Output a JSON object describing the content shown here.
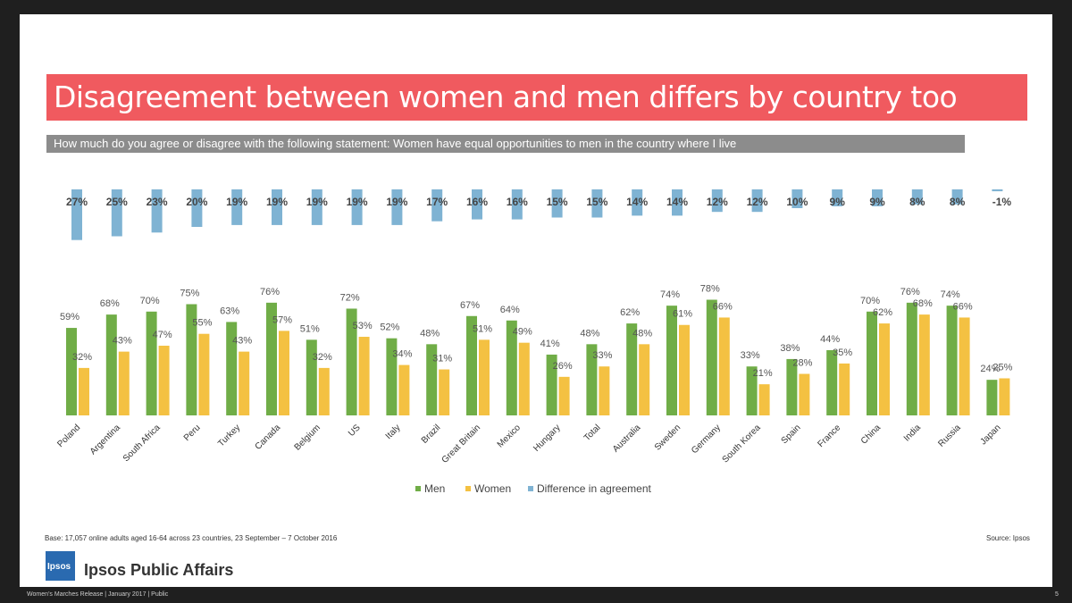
{
  "title": "Disagreement between women and men differs by country too",
  "subtitle": "How much do you agree or disagree with the following statement: Women have equal opportunities to men in the country where I live",
  "footnote_base": "Base: 17,057 online adults aged 16-64 across 23 countries,  23 September – 7 October 2016",
  "footnote_source": "Source: Ipsos",
  "brand": {
    "logo_text": "Ipsos",
    "name": "Ipsos Public Affairs"
  },
  "footer": {
    "release": "Women’s Marches Release  |  January 2017  |  Public",
    "page": "5"
  },
  "colors": {
    "title_bg": "#f05a5f",
    "subtitle_bg": "#8c8c8c",
    "men": "#70ad47",
    "women": "#f4c142",
    "difference": "#7fb3d3"
  },
  "chart_data": {
    "type": "bar",
    "categories": [
      "Poland",
      "Argentina",
      "South Africa",
      "Peru",
      "Turkey",
      "Canada",
      "Belgium",
      "US",
      "Italy",
      "Brazil",
      "Great Britain",
      "Mexico",
      "Hungary",
      "Total",
      "Australia",
      "Sweden",
      "Germany",
      "South Korea",
      "Spain",
      "France",
      "China",
      "India",
      "Russia",
      "Japan"
    ],
    "series": [
      {
        "name": "Men",
        "values": [
          59,
          68,
          70,
          75,
          63,
          76,
          51,
          72,
          52,
          48,
          67,
          64,
          41,
          48,
          62,
          74,
          78,
          33,
          38,
          44,
          70,
          76,
          74,
          24
        ]
      },
      {
        "name": "Women",
        "values": [
          32,
          43,
          47,
          55,
          43,
          57,
          32,
          53,
          34,
          31,
          51,
          49,
          26,
          33,
          48,
          61,
          66,
          21,
          28,
          35,
          62,
          68,
          66,
          25
        ]
      },
      {
        "name": "Difference in agreement",
        "values": [
          27,
          25,
          23,
          20,
          19,
          19,
          19,
          19,
          19,
          17,
          16,
          16,
          15,
          15,
          14,
          14,
          12,
          12,
          10,
          9,
          9,
          8,
          8,
          -1
        ]
      }
    ],
    "legend": [
      "Men",
      "Women",
      "Difference in agreement"
    ],
    "legend_position": "bottom"
  }
}
